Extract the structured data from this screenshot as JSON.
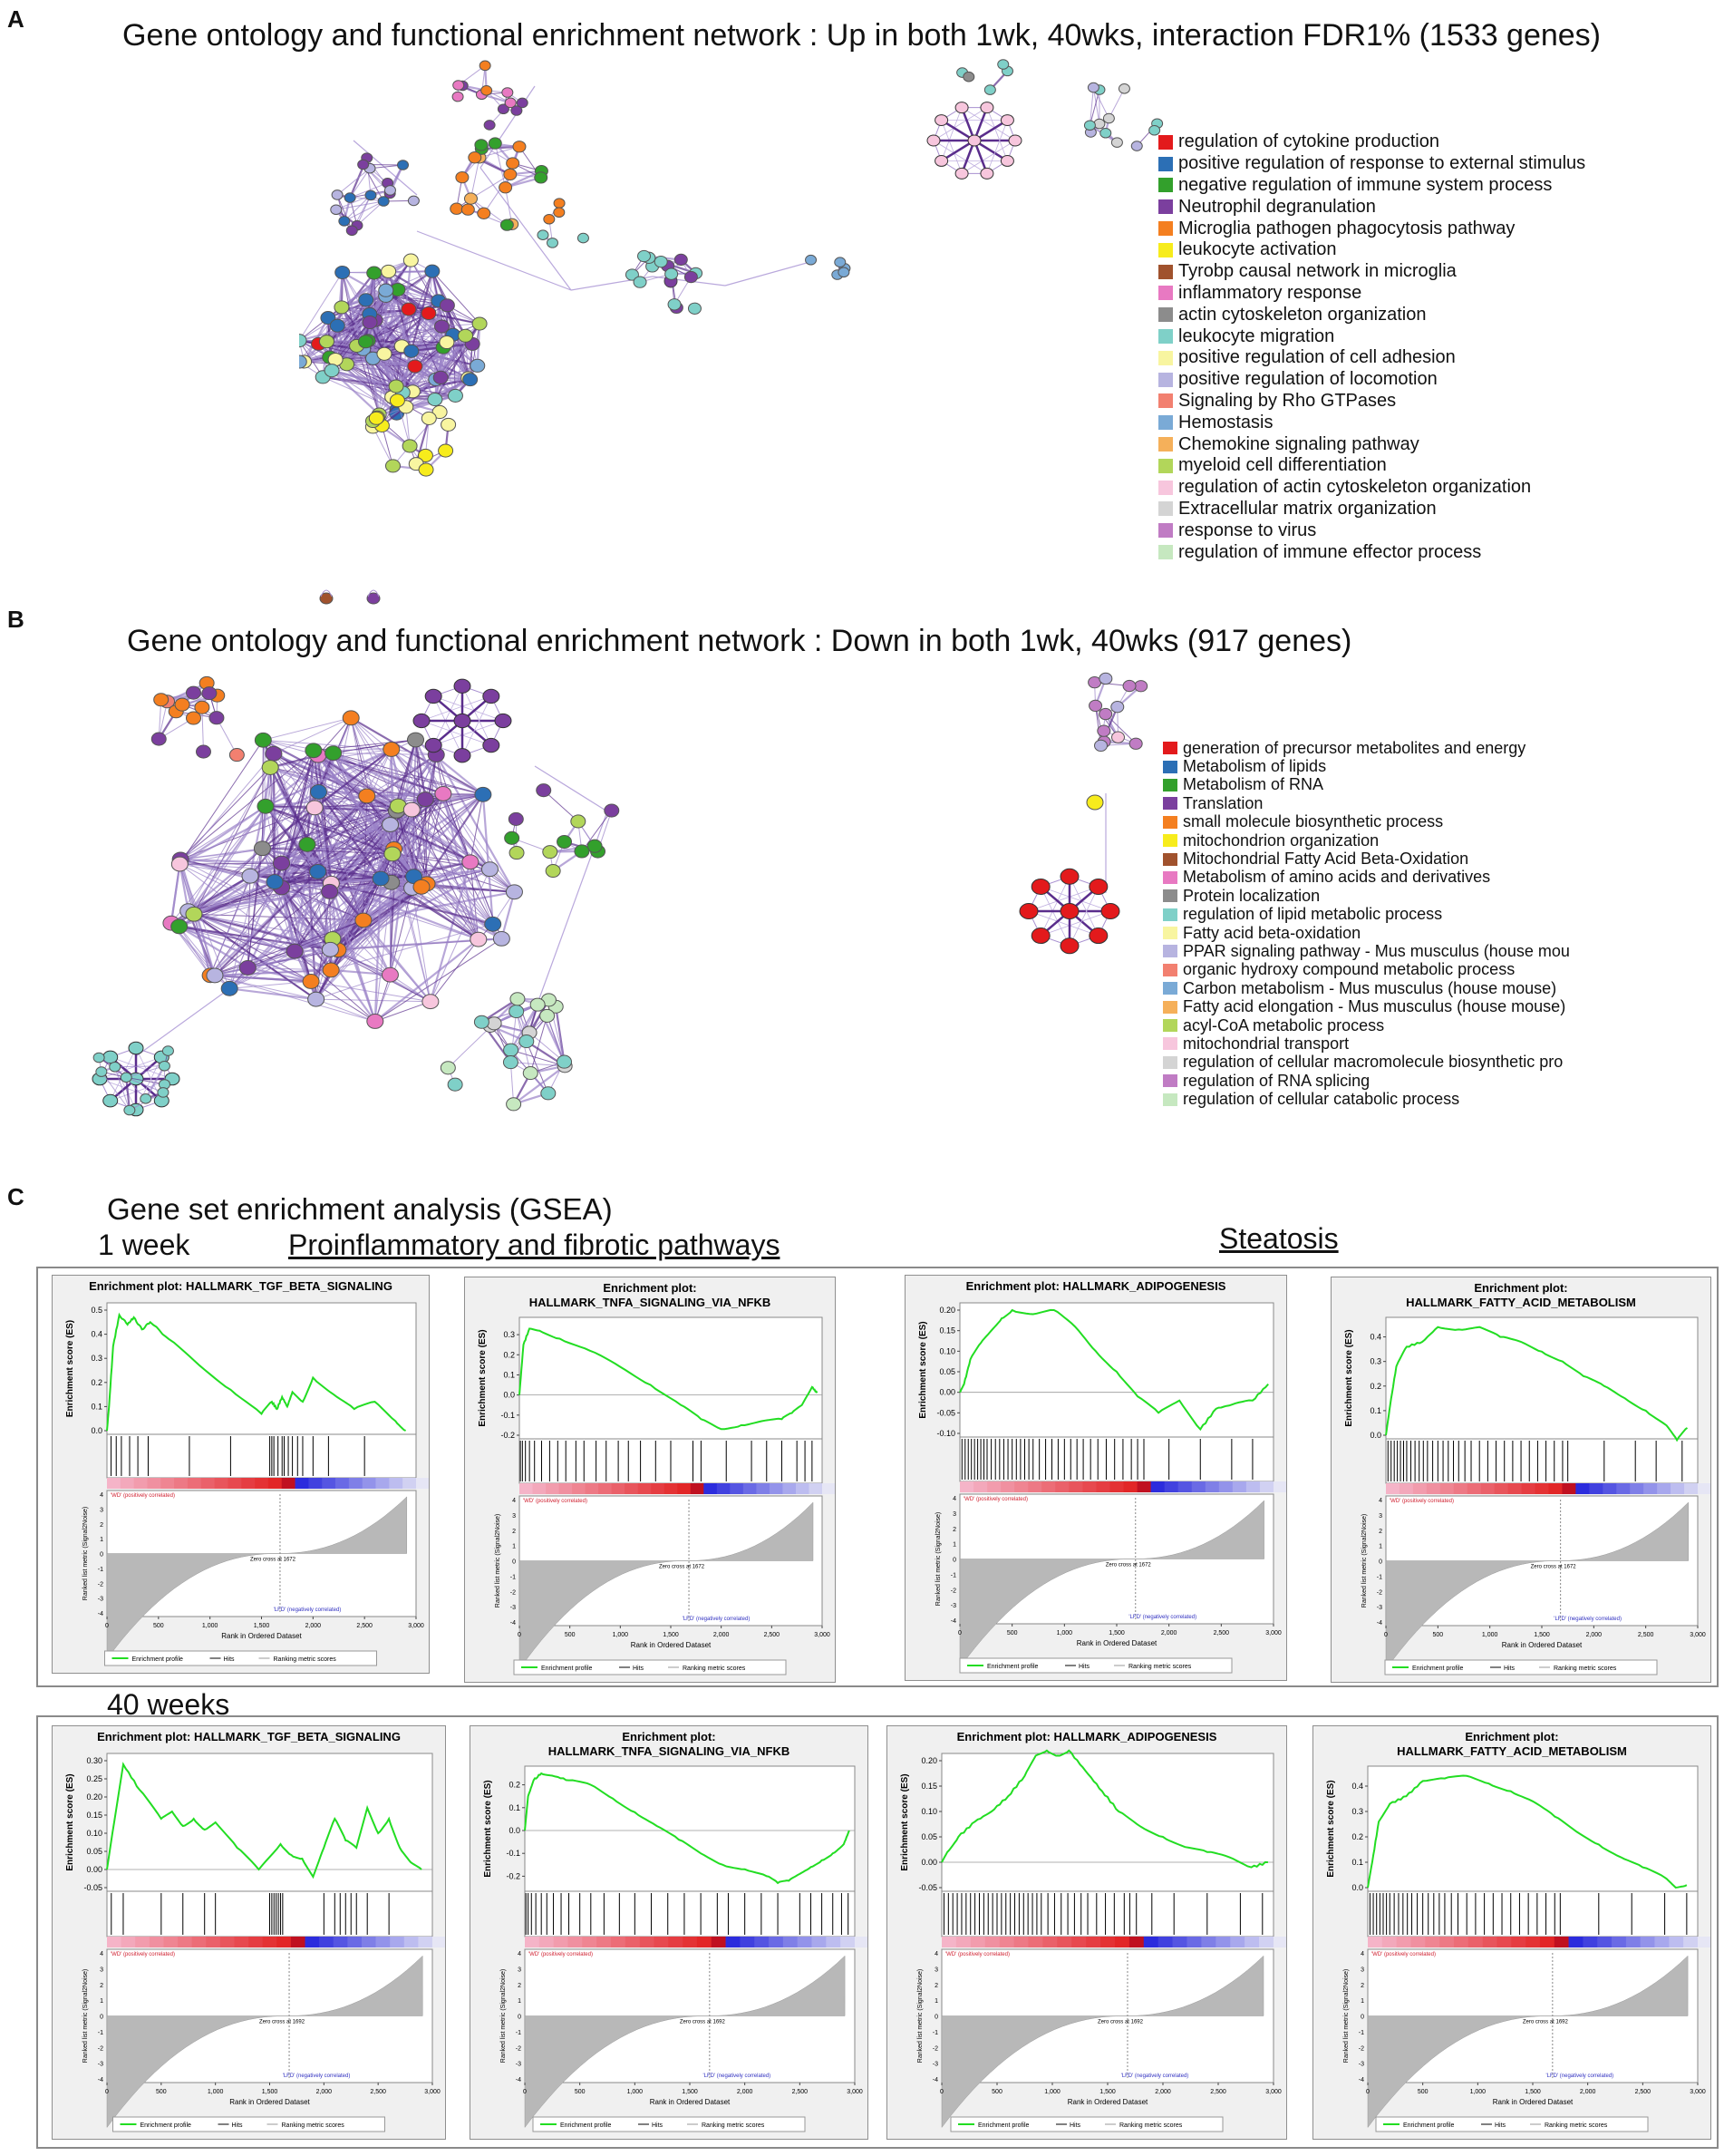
{
  "panelA": {
    "letter": "A",
    "title": "Gene ontology and functional enrichment network : Up in both 1wk, 40wks, interaction FDR1% (1533 genes)",
    "legend": [
      {
        "label": "regulation of cytokine production",
        "color": "#e31a1c"
      },
      {
        "label": "positive regulation of response to external stimulus",
        "color": "#2c6fb5"
      },
      {
        "label": "negative regulation of immune system process",
        "color": "#33a02c"
      },
      {
        "label": "Neutrophil degranulation",
        "color": "#7b3f9e"
      },
      {
        "label": "Microglia pathogen phagocytosis pathway",
        "color": "#f47f20"
      },
      {
        "label": "leukocyte activation",
        "color": "#f7ec1c"
      },
      {
        "label": "Tyrobp causal network in microglia",
        "color": "#a0522d"
      },
      {
        "label": "inflammatory response",
        "color": "#e879c2"
      },
      {
        "label": "actin cytoskeleton organization",
        "color": "#8c8c8c"
      },
      {
        "label": "leukocyte migration",
        "color": "#7fd0c8"
      },
      {
        "label": "positive regulation of cell adhesion",
        "color": "#f8f5a0"
      },
      {
        "label": "positive regulation of locomotion",
        "color": "#b7b4e0"
      },
      {
        "label": "Signaling by Rho GTPases",
        "color": "#f28070"
      },
      {
        "label": "Hemostasis",
        "color": "#7aaad6"
      },
      {
        "label": "Chemokine signaling pathway",
        "color": "#f5b05a"
      },
      {
        "label": "myeloid cell differentiation",
        "color": "#b2d65a"
      },
      {
        "label": "regulation of actin cytoskeleton organization",
        "color": "#f7c6dd"
      },
      {
        "label": "Extracellular matrix organization",
        "color": "#d4d4d4"
      },
      {
        "label": "response to virus",
        "color": "#c07cc4"
      },
      {
        "label": "regulation of immune effector process",
        "color": "#c6e8c0"
      }
    ]
  },
  "panelB": {
    "letter": "B",
    "title": "Gene ontology and functional enrichment network : Down in both 1wk, 40wks (917 genes)",
    "legend": [
      {
        "label": "generation of precursor metabolites and energy",
        "color": "#e31a1c"
      },
      {
        "label": "Metabolism of lipids",
        "color": "#2c6fb5"
      },
      {
        "label": "Metabolism of RNA",
        "color": "#33a02c"
      },
      {
        "label": "Translation",
        "color": "#7b3f9e"
      },
      {
        "label": "small molecule biosynthetic process",
        "color": "#f47f20"
      },
      {
        "label": "mitochondrion organization",
        "color": "#f7ec1c"
      },
      {
        "label": "Mitochondrial Fatty Acid Beta-Oxidation",
        "color": "#a0522d"
      },
      {
        "label": "Metabolism of amino acids and derivatives",
        "color": "#e879c2"
      },
      {
        "label": "Protein localization",
        "color": "#8c8c8c"
      },
      {
        "label": "regulation of lipid metabolic process",
        "color": "#7fd0c8"
      },
      {
        "label": "Fatty acid beta-oxidation",
        "color": "#f8f5a0"
      },
      {
        "label": "PPAR signaling pathway - Mus musculus (house mou",
        "color": "#b7b4e0"
      },
      {
        "label": "organic hydroxy compound metabolic process",
        "color": "#f28070"
      },
      {
        "label": "Carbon metabolism - Mus musculus (house mouse)",
        "color": "#7aaad6"
      },
      {
        "label": "Fatty acid elongation - Mus musculus (house mouse)",
        "color": "#f5b05a"
      },
      {
        "label": "acyl-CoA metabolic process",
        "color": "#b2d65a"
      },
      {
        "label": "mitochondrial transport",
        "color": "#f7c6dd"
      },
      {
        "label": "regulation of cellular macromolecule biosynthetic pro",
        "color": "#d4d4d4"
      },
      {
        "label": "regulation of RNA splicing",
        "color": "#c07cc4"
      },
      {
        "label": "regulation of cellular catabolic process",
        "color": "#c6e8c0"
      }
    ]
  },
  "panelC": {
    "letter": "C",
    "heading": "Gene set enrichment analysis (GSEA)",
    "group1": "Proinflammatory and fibrotic pathways",
    "group2": "Steatosis",
    "row1_label": "1 week",
    "row2_label": "40 weeks",
    "plot_common": {
      "es_axis_label": "Enrichment score (ES)",
      "metric_axis_label": "Ranked list metric (Signal2Noise)",
      "x_axis_label": "Rank in Ordered Dataset",
      "pos_label": "'WD' (positively correlated)",
      "neg_label": "'LFD' (negatively correlated)",
      "zero_cross_1wk": "Zero cross at 1672",
      "zero_cross_40wk": "Zero cross at 1692",
      "legend_profile": "Enrichment profile",
      "legend_hits": "Hits",
      "legend_ranking": "Ranking metric scores",
      "x_ticks": [
        "0",
        "500",
        "1,000",
        "1,500",
        "2,000",
        "2,500",
        "3,000"
      ],
      "metric_ticks": [
        "4",
        "3",
        "2",
        "1",
        "0",
        "-1",
        "-2",
        "-3",
        "-4"
      ],
      "profile_color": "#22dd22"
    }
  },
  "chart_data": [
    {
      "type": "line",
      "title": "Enrichment plot: HALLMARK_TGF_BETA_SIGNALING",
      "row": "1 week",
      "xlabel": "Rank in Ordered Dataset",
      "ylabel": "Enrichment score (ES)",
      "xlim": [
        0,
        3000
      ],
      "ylim": [
        0,
        0.5
      ],
      "yticks": [
        "0.5",
        "0.4",
        "0.3",
        "0.2",
        "0.1",
        "0.0"
      ],
      "x": [
        0,
        20,
        60,
        120,
        200,
        260,
        340,
        420,
        600,
        900,
        1200,
        1500,
        1600,
        1650,
        1700,
        1750,
        1800,
        1900,
        2000,
        2200,
        2400,
        2600,
        2800,
        2900
      ],
      "values": [
        0.0,
        0.1,
        0.35,
        0.48,
        0.44,
        0.47,
        0.42,
        0.45,
        0.38,
        0.27,
        0.17,
        0.07,
        0.12,
        0.09,
        0.14,
        0.1,
        0.16,
        0.12,
        0.22,
        0.15,
        0.09,
        0.12,
        0.04,
        0.0
      ],
      "hits": [
        40,
        90,
        140,
        220,
        300,
        400,
        800,
        1200,
        1580,
        1600,
        1620,
        1660,
        1700,
        1720,
        1760,
        1800,
        1850,
        1900,
        2000,
        2150,
        2500
      ]
    },
    {
      "type": "line",
      "title": "Enrichment plot: HALLMARK_TNFA_SIGNALING_VIA_NFKB",
      "row": "1 week",
      "xlabel": "Rank in Ordered Dataset",
      "ylabel": "Enrichment score (ES)",
      "xlim": [
        0,
        3000
      ],
      "ylim": [
        -0.2,
        0.35
      ],
      "yticks": [
        "0.3",
        "0.2",
        "0.1",
        "0.0",
        "-0.1",
        "-0.2"
      ],
      "x": [
        0,
        40,
        100,
        200,
        400,
        700,
        1000,
        1300,
        1600,
        1800,
        2000,
        2200,
        2400,
        2600,
        2700,
        2800,
        2900,
        2950
      ],
      "values": [
        0.0,
        0.25,
        0.33,
        0.32,
        0.28,
        0.22,
        0.14,
        0.05,
        -0.05,
        -0.12,
        -0.17,
        -0.15,
        -0.13,
        -0.12,
        -0.09,
        -0.05,
        0.04,
        0.01
      ],
      "hits": [
        10,
        30,
        60,
        100,
        150,
        220,
        300,
        380,
        460,
        560,
        640,
        760,
        860,
        980,
        1080,
        1200,
        1350,
        1500,
        1720,
        1800,
        2050,
        2300,
        2450,
        2600,
        2750,
        2830,
        2900
      ]
    },
    {
      "type": "line",
      "title": "Enrichment plot: HALLMARK_ADIPOGENESIS",
      "row": "1 week",
      "xlabel": "Rank in Ordered Dataset",
      "ylabel": "Enrichment score (ES)",
      "xlim": [
        0,
        3000
      ],
      "ylim": [
        -0.1,
        0.2
      ],
      "yticks": [
        "0.20",
        "0.15",
        "0.10",
        "0.05",
        "0.00",
        "-0.05",
        "-0.10"
      ],
      "x": [
        0,
        40,
        100,
        200,
        300,
        400,
        500,
        700,
        900,
        1100,
        1300,
        1500,
        1700,
        1900,
        2100,
        2300,
        2450,
        2600,
        2800,
        2950
      ],
      "values": [
        0.0,
        0.02,
        0.08,
        0.12,
        0.15,
        0.18,
        0.2,
        0.19,
        0.2,
        0.16,
        0.1,
        0.05,
        -0.01,
        -0.05,
        -0.02,
        -0.09,
        -0.04,
        -0.03,
        -0.02,
        0.02
      ],
      "hits": [
        20,
        50,
        80,
        110,
        140,
        170,
        200,
        230,
        260,
        300,
        340,
        380,
        420,
        460,
        500,
        540,
        580,
        620,
        660,
        700,
        760,
        820,
        880,
        940,
        1000,
        1060,
        1120,
        1180,
        1250,
        1320,
        1400,
        1480,
        1560,
        1640,
        1700,
        1760,
        2000,
        2300,
        2600,
        2800
      ]
    },
    {
      "type": "line",
      "title": "Enrichment plot: HALLMARK_FATTY_ACID_METABOLISM",
      "row": "1 week",
      "xlabel": "Rank in Ordered Dataset",
      "ylabel": "Enrichment score (ES)",
      "xlim": [
        0,
        3000
      ],
      "ylim": [
        0,
        0.45
      ],
      "yticks": [
        "0.4",
        "0.3",
        "0.2",
        "0.1",
        "0.0"
      ],
      "x": [
        0,
        40,
        100,
        200,
        350,
        500,
        700,
        900,
        1100,
        1300,
        1500,
        1700,
        1900,
        2100,
        2300,
        2500,
        2700,
        2800,
        2900
      ],
      "values": [
        0.0,
        0.12,
        0.28,
        0.36,
        0.38,
        0.44,
        0.43,
        0.44,
        0.4,
        0.38,
        0.34,
        0.3,
        0.24,
        0.2,
        0.15,
        0.1,
        0.04,
        -0.02,
        0.03
      ],
      "hits": [
        20,
        50,
        80,
        110,
        140,
        170,
        200,
        240,
        280,
        320,
        360,
        400,
        450,
        500,
        550,
        600,
        650,
        700,
        760,
        820,
        900,
        980,
        1060,
        1140,
        1220,
        1300,
        1380,
        1460,
        1540,
        1620,
        1700,
        1750,
        2100,
        2400,
        2600,
        2850
      ]
    },
    {
      "type": "line",
      "title": "Enrichment plot: HALLMARK_TGF_BETA_SIGNALING",
      "row": "40 weeks",
      "xlabel": "Rank in Ordered Dataset",
      "ylabel": "Enrichment score (ES)",
      "xlim": [
        0,
        3000
      ],
      "ylim": [
        -0.05,
        0.3
      ],
      "yticks": [
        "0.30",
        "0.25",
        "0.20",
        "0.15",
        "0.10",
        "0.05",
        "0.00",
        "-0.05"
      ],
      "x": [
        0,
        50,
        150,
        300,
        500,
        600,
        700,
        800,
        900,
        1000,
        1200,
        1400,
        1600,
        1700,
        1800,
        1900,
        2000,
        2100,
        2200,
        2300,
        2400,
        2500,
        2600,
        2700,
        2800,
        2900
      ],
      "values": [
        0.0,
        0.1,
        0.29,
        0.22,
        0.14,
        0.16,
        0.12,
        0.14,
        0.11,
        0.13,
        0.06,
        0.0,
        0.07,
        0.04,
        0.03,
        -0.02,
        0.06,
        0.14,
        0.08,
        0.06,
        0.17,
        0.1,
        0.14,
        0.06,
        0.02,
        0.0
      ],
      "hits": [
        40,
        150,
        500,
        700,
        900,
        1000,
        1500,
        1520,
        1540,
        1560,
        1580,
        1600,
        1620,
        2000,
        2100,
        2150,
        2200,
        2250,
        2300,
        2400,
        2600
      ]
    },
    {
      "type": "line",
      "title": "Enrichment plot: HALLMARK_TNFA_SIGNALING_VIA_NFKB",
      "row": "40 weeks",
      "xlabel": "Rank in Ordered Dataset",
      "ylabel": "Enrichment score (ES)",
      "xlim": [
        0,
        3000
      ],
      "ylim": [
        -0.25,
        0.25
      ],
      "yticks": [
        "0.2",
        "0.1",
        "0.0",
        "-0.1",
        "-0.2"
      ],
      "x": [
        0,
        30,
        80,
        150,
        250,
        400,
        600,
        800,
        1000,
        1200,
        1400,
        1600,
        1800,
        2000,
        2200,
        2300,
        2400,
        2500,
        2600,
        2700,
        2800,
        2900,
        2950
      ],
      "values": [
        0.0,
        0.15,
        0.22,
        0.25,
        0.24,
        0.22,
        0.2,
        0.14,
        0.08,
        0.02,
        -0.04,
        -0.1,
        -0.15,
        -0.17,
        -0.2,
        -0.23,
        -0.22,
        -0.19,
        -0.16,
        -0.13,
        -0.1,
        -0.06,
        0.0
      ],
      "hits": [
        10,
        30,
        60,
        100,
        150,
        200,
        260,
        330,
        400,
        500,
        600,
        720,
        860,
        1000,
        1150,
        1300,
        1450,
        1600,
        1750,
        1850,
        2000,
        2150,
        2300,
        2500,
        2600,
        2700,
        2800,
        2880,
        2940
      ]
    },
    {
      "type": "line",
      "title": "Enrichment plot: HALLMARK_ADIPOGENESIS",
      "row": "40 weeks",
      "xlabel": "Rank in Ordered Dataset",
      "ylabel": "Enrichment score (ES)",
      "xlim": [
        0,
        3000
      ],
      "ylim": [
        -0.05,
        0.2
      ],
      "yticks": [
        "0.20",
        "0.15",
        "0.10",
        "0.05",
        "0.00",
        "-0.05"
      ],
      "x": [
        0,
        50,
        150,
        300,
        450,
        600,
        750,
        850,
        950,
        1050,
        1150,
        1300,
        1450,
        1600,
        1800,
        2000,
        2200,
        2400,
        2600,
        2800,
        2950
      ],
      "values": [
        0.0,
        0.02,
        0.05,
        0.08,
        0.1,
        0.13,
        0.17,
        0.21,
        0.22,
        0.21,
        0.22,
        0.18,
        0.14,
        0.1,
        0.07,
        0.05,
        0.03,
        0.02,
        0.01,
        -0.01,
        0.0
      ],
      "hits": [
        20,
        60,
        100,
        140,
        180,
        220,
        260,
        300,
        340,
        380,
        420,
        460,
        500,
        540,
        580,
        620,
        660,
        700,
        740,
        780,
        820,
        860,
        900,
        960,
        1020,
        1080,
        1140,
        1200,
        1260,
        1320,
        1400,
        1480,
        1560,
        1650,
        1700,
        1760,
        1900,
        2100,
        2400,
        2700,
        2900
      ]
    },
    {
      "type": "line",
      "title": "Enrichment plot: HALLMARK_FATTY_ACID_METABOLISM",
      "row": "40 weeks",
      "xlabel": "Rank in Ordered Dataset",
      "ylabel": "Enrichment score (ES)",
      "xlim": [
        0,
        3000
      ],
      "ylim": [
        0,
        0.45
      ],
      "yticks": [
        "0.4",
        "0.3",
        "0.2",
        "0.1",
        "0.0"
      ],
      "x": [
        0,
        40,
        100,
        200,
        350,
        500,
        700,
        900,
        1100,
        1300,
        1500,
        1700,
        1900,
        2100,
        2300,
        2500,
        2700,
        2800,
        2900
      ],
      "values": [
        0.0,
        0.1,
        0.26,
        0.33,
        0.36,
        0.42,
        0.43,
        0.44,
        0.41,
        0.38,
        0.34,
        0.28,
        0.22,
        0.17,
        0.12,
        0.08,
        0.04,
        0.0,
        0.01
      ],
      "hits": [
        20,
        50,
        80,
        110,
        140,
        170,
        200,
        240,
        280,
        320,
        360,
        400,
        450,
        500,
        550,
        600,
        650,
        700,
        760,
        820,
        900,
        980,
        1060,
        1140,
        1220,
        1300,
        1380,
        1460,
        1540,
        1620,
        1700,
        1750,
        2100,
        2400,
        2700,
        2900
      ]
    }
  ]
}
